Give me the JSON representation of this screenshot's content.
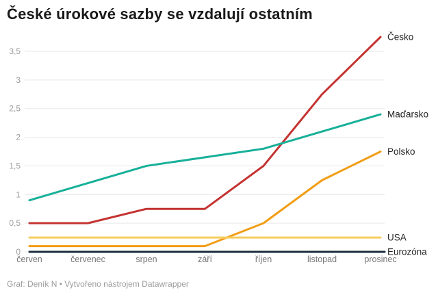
{
  "title": "České úrokové sazby se vzdalují ostatním",
  "footer": "Graf: Deník N • Vytvořeno nástrojem Datawrapper",
  "chart_data": {
    "type": "line",
    "x_axis_label": "",
    "y_axis_label": "",
    "categories": [
      "červen",
      "červenec",
      "srpen",
      "září",
      "říjen",
      "listopad",
      "prosinec"
    ],
    "series": [
      {
        "name": "Česko",
        "color": "#c43331",
        "values": [
          0.5,
          0.5,
          0.75,
          0.75,
          1.5,
          2.75,
          3.75
        ],
        "touches_label": false
      },
      {
        "name": "Maďarsko",
        "color": "#18b099",
        "values": [
          0.9,
          1.2,
          1.5,
          1.65,
          1.8,
          2.1,
          2.4
        ],
        "touches_label": false
      },
      {
        "name": "Polsko",
        "color": "#f19d15",
        "values": [
          0.1,
          0.1,
          0.1,
          0.1,
          0.5,
          1.25,
          1.75
        ],
        "touches_label": false
      },
      {
        "name": "USA",
        "color": "#f5cd5f",
        "values": [
          0.25,
          0.25,
          0.25,
          0.25,
          0.25,
          0.25,
          0.25
        ],
        "touches_label": false
      },
      {
        "name": "Eurozóna",
        "color": "#1b2d3f",
        "values": [
          0,
          0,
          0,
          0,
          0,
          0,
          0
        ],
        "touches_label": true
      }
    ],
    "yticks": [
      {
        "v": 0,
        "label": "0"
      },
      {
        "v": 0.5,
        "label": "0,5"
      },
      {
        "v": 1,
        "label": "1"
      },
      {
        "v": 1.5,
        "label": "1,5"
      },
      {
        "v": 2,
        "label": "2"
      },
      {
        "v": 2.5,
        "label": "2,5"
      },
      {
        "v": 3,
        "label": "3"
      },
      {
        "v": 3.5,
        "label": "3,5"
      }
    ],
    "ylim": [
      0,
      3.75
    ],
    "grid": "horizontal",
    "legend_position": "right-of-line-ends",
    "colors": {
      "grid": "#e7e7e7",
      "y_tick_text": "#9c9c9c",
      "x_tick_text": "#767676",
      "series_label_text": "#262626"
    }
  }
}
